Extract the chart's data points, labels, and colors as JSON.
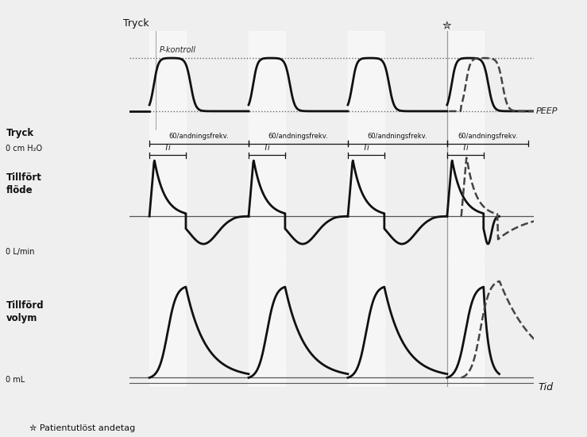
{
  "background_color": "#f0f0f0",
  "line_color": "#111111",
  "dashed_color": "#333333",
  "fig_width": 7.39,
  "fig_height": 5.5,
  "ylabel_pressure": "Tryck",
  "ylabel_flow_1": "Tillfört",
  "ylabel_flow_2": "flöde",
  "ylabel_volume_1": "Tillförd",
  "ylabel_volume_2": "volym",
  "xlabel": "Tid",
  "y0_label_pressure1": "Tryck",
  "y0_label_pressure2": "0 cm H₂O",
  "y0_label_flow": "0 L/min",
  "y0_label_volume": "0 mL",
  "peep_label": "PEEP",
  "pkontroll_label": "P-kontroll",
  "footer_text": "✮ Patientutlöst andetag",
  "ti_label": "Ti",
  "freq_label": "60/andningsfrekv."
}
